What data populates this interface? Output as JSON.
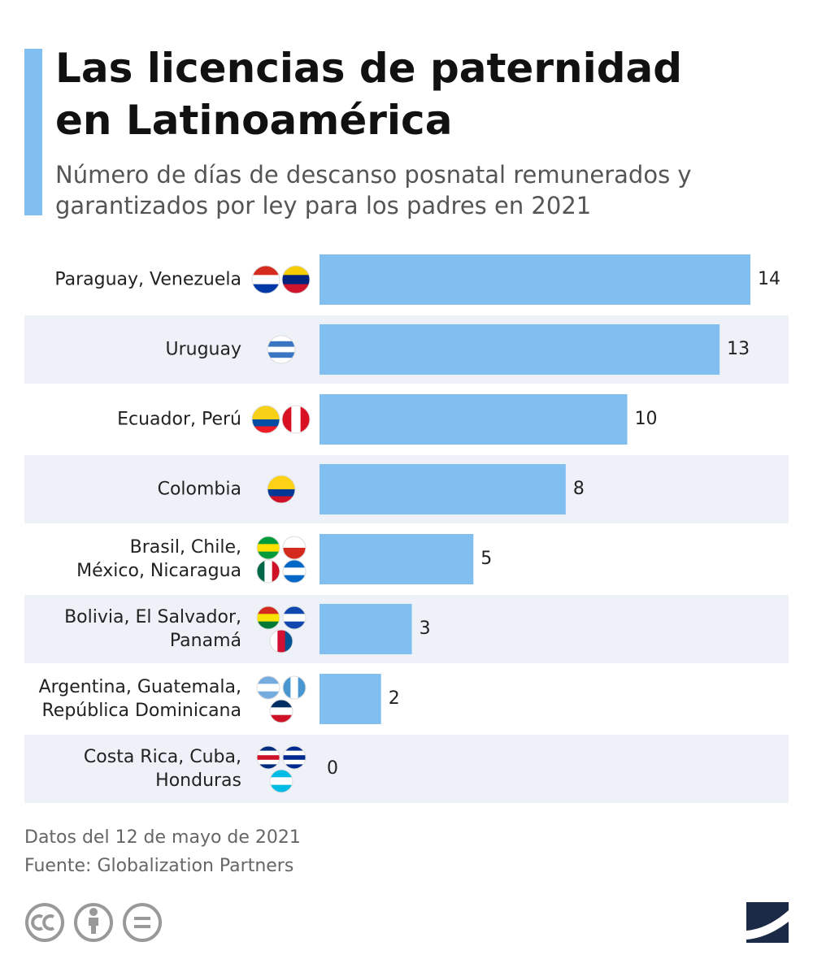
{
  "chart_data": {
    "type": "bar",
    "orientation": "horizontal",
    "title": "Las licencias de paternidad\nen Latinoamérica",
    "subtitle": "Número de días de descanso posnatal remunerados y\ngarantizados por ley para los padres en 2021",
    "categories": [
      "Paraguay, Venezuela",
      "Uruguay",
      "Ecuador, Perú",
      "Colombia",
      "Brasil, Chile,\nMéxico, Nicaragua",
      "Bolivia, El Salvador,\nPanamá",
      "Argentina, Guatemala,\nRepública Dominicana",
      "Costa Rica, Cuba,\nHonduras"
    ],
    "values": [
      14,
      13,
      10,
      8,
      5,
      3,
      2,
      0
    ],
    "color": "#80bff0",
    "notes": [
      "Datos del 12 de mayo de 2021",
      "Fuente: Globalization Partners"
    ],
    "logo": "statista"
  }
}
